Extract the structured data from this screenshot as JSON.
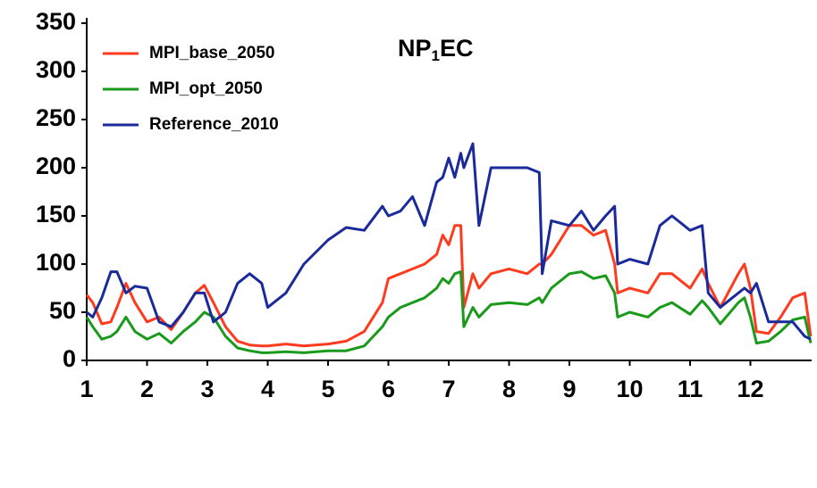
{
  "chart_data": {
    "type": "line",
    "title": [
      "NP",
      "1",
      "EC"
    ],
    "x": [
      1,
      1.1,
      1.25,
      1.4,
      1.5,
      1.65,
      1.8,
      2.0,
      2.2,
      2.4,
      2.6,
      2.8,
      2.95,
      3.1,
      3.3,
      3.5,
      3.7,
      3.9,
      4.0,
      4.3,
      4.6,
      5.0,
      5.3,
      5.6,
      5.9,
      6.0,
      6.2,
      6.4,
      6.6,
      6.8,
      6.9,
      7.0,
      7.1,
      7.2,
      7.25,
      7.4,
      7.5,
      7.7,
      8.0,
      8.3,
      8.5,
      8.55,
      8.7,
      9.0,
      9.2,
      9.4,
      9.6,
      9.75,
      9.8,
      10.0,
      10.3,
      10.5,
      10.7,
      11.0,
      11.2,
      11.3,
      11.5,
      11.8,
      11.9,
      12.0,
      12.1,
      12.3,
      12.5,
      12.7,
      12.9,
      13.0
    ],
    "series": [
      {
        "name": "MPI_base_2050",
        "color": "#ff3b1f",
        "values": [
          68,
          60,
          38,
          40,
          55,
          80,
          60,
          40,
          45,
          32,
          50,
          70,
          78,
          60,
          35,
          20,
          16,
          15,
          15,
          17,
          15,
          17,
          20,
          30,
          60,
          85,
          90,
          95,
          100,
          110,
          130,
          120,
          140,
          140,
          55,
          90,
          75,
          90,
          95,
          90,
          100,
          100,
          110,
          140,
          140,
          130,
          135,
          100,
          70,
          75,
          70,
          90,
          90,
          75,
          95,
          80,
          55,
          90,
          100,
          75,
          30,
          28,
          45,
          65,
          70,
          25
        ]
      },
      {
        "name": "MPI_opt_2050",
        "color": "#1a9a1a",
        "values": [
          45,
          35,
          22,
          25,
          30,
          45,
          30,
          22,
          28,
          18,
          30,
          40,
          50,
          45,
          25,
          13,
          10,
          8,
          8,
          9,
          8,
          10,
          10,
          15,
          35,
          45,
          55,
          60,
          65,
          75,
          85,
          80,
          90,
          92,
          35,
          55,
          45,
          58,
          60,
          58,
          65,
          60,
          75,
          90,
          92,
          85,
          88,
          70,
          45,
          50,
          45,
          55,
          60,
          48,
          62,
          55,
          38,
          60,
          65,
          45,
          18,
          20,
          30,
          42,
          45,
          18
        ]
      },
      {
        "name": "Reference_2010",
        "color": "#1a2a9a",
        "values": [
          50,
          45,
          65,
          92,
          92,
          70,
          77,
          75,
          40,
          35,
          50,
          70,
          70,
          40,
          50,
          80,
          90,
          80,
          55,
          70,
          100,
          125,
          138,
          135,
          160,
          150,
          155,
          170,
          140,
          185,
          190,
          210,
          190,
          215,
          200,
          225,
          140,
          200,
          200,
          200,
          195,
          90,
          145,
          140,
          155,
          135,
          150,
          160,
          100,
          105,
          100,
          140,
          150,
          135,
          140,
          70,
          55,
          70,
          75,
          70,
          80,
          40,
          40,
          40,
          25,
          22
        ]
      }
    ],
    "xlim": [
      1,
      13
    ],
    "xticks": [
      1,
      2,
      3,
      4,
      5,
      6,
      7,
      8,
      9,
      10,
      11,
      12
    ],
    "ylim": [
      0,
      350
    ],
    "yticks": [
      0,
      50,
      100,
      150,
      200,
      250,
      300,
      350
    ],
    "legend": "top-left"
  }
}
